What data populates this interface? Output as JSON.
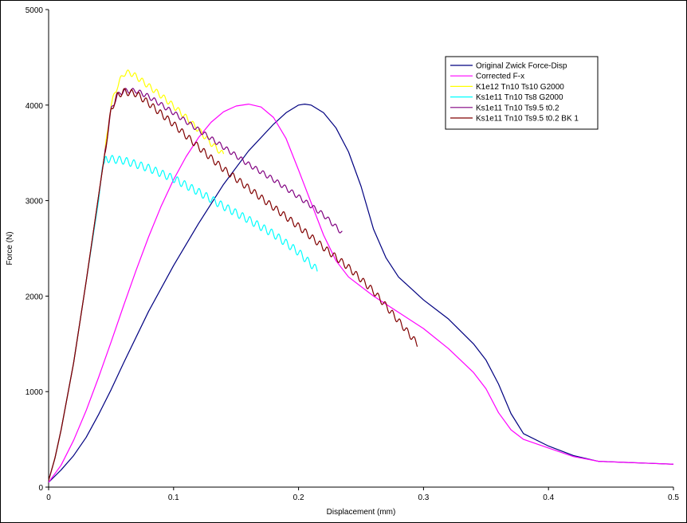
{
  "chart_data": {
    "type": "line",
    "title": "",
    "xlabel": "Displacement (mm)",
    "ylabel": "Force (N)",
    "xlim": [
      0,
      0.5
    ],
    "ylim": [
      0,
      5000
    ],
    "x_ticks": [
      "0",
      "0.1",
      "0.2",
      "0.3",
      "0.4",
      "0.5"
    ],
    "y_ticks": [
      "0",
      "1000",
      "2000",
      "3000",
      "4000",
      "5000"
    ],
    "grid": false,
    "legend_position": "top-right",
    "series": [
      {
        "name": "Original Zwick Force-Disp",
        "color": "#000080",
        "oscillation": 0,
        "points": [
          [
            0,
            50
          ],
          [
            0.01,
            180
          ],
          [
            0.02,
            330
          ],
          [
            0.03,
            520
          ],
          [
            0.04,
            760
          ],
          [
            0.05,
            1020
          ],
          [
            0.06,
            1300
          ],
          [
            0.08,
            1840
          ],
          [
            0.1,
            2320
          ],
          [
            0.12,
            2760
          ],
          [
            0.14,
            3170
          ],
          [
            0.16,
            3520
          ],
          [
            0.18,
            3800
          ],
          [
            0.19,
            3920
          ],
          [
            0.2,
            4000
          ],
          [
            0.205,
            4010
          ],
          [
            0.21,
            4000
          ],
          [
            0.22,
            3920
          ],
          [
            0.23,
            3760
          ],
          [
            0.24,
            3510
          ],
          [
            0.25,
            3150
          ],
          [
            0.26,
            2700
          ],
          [
            0.27,
            2400
          ],
          [
            0.28,
            2200
          ],
          [
            0.3,
            1960
          ],
          [
            0.32,
            1760
          ],
          [
            0.34,
            1500
          ],
          [
            0.35,
            1330
          ],
          [
            0.36,
            1080
          ],
          [
            0.37,
            770
          ],
          [
            0.38,
            560
          ],
          [
            0.4,
            430
          ],
          [
            0.42,
            330
          ],
          [
            0.44,
            270
          ],
          [
            0.46,
            260
          ],
          [
            0.48,
            250
          ],
          [
            0.5,
            240
          ]
        ]
      },
      {
        "name": "Corrected F-x",
        "color": "#FF00FF",
        "oscillation": 0,
        "points": [
          [
            0,
            50
          ],
          [
            0.01,
            230
          ],
          [
            0.02,
            490
          ],
          [
            0.03,
            800
          ],
          [
            0.04,
            1150
          ],
          [
            0.05,
            1520
          ],
          [
            0.06,
            1900
          ],
          [
            0.07,
            2270
          ],
          [
            0.08,
            2620
          ],
          [
            0.09,
            2940
          ],
          [
            0.1,
            3220
          ],
          [
            0.11,
            3460
          ],
          [
            0.12,
            3660
          ],
          [
            0.13,
            3820
          ],
          [
            0.14,
            3930
          ],
          [
            0.15,
            3990
          ],
          [
            0.16,
            4010
          ],
          [
            0.17,
            3980
          ],
          [
            0.18,
            3870
          ],
          [
            0.19,
            3650
          ],
          [
            0.2,
            3320
          ],
          [
            0.21,
            2980
          ],
          [
            0.22,
            2640
          ],
          [
            0.23,
            2370
          ],
          [
            0.24,
            2200
          ],
          [
            0.26,
            2000
          ],
          [
            0.28,
            1830
          ],
          [
            0.3,
            1660
          ],
          [
            0.32,
            1450
          ],
          [
            0.34,
            1200
          ],
          [
            0.35,
            1030
          ],
          [
            0.36,
            780
          ],
          [
            0.37,
            600
          ],
          [
            0.38,
            500
          ],
          [
            0.4,
            410
          ],
          [
            0.42,
            320
          ],
          [
            0.44,
            270
          ],
          [
            0.46,
            260
          ],
          [
            0.48,
            250
          ],
          [
            0.5,
            240
          ]
        ]
      },
      {
        "name": "K1e12 Tn10 Ts10 G2000",
        "color": "#FFFF00",
        "oscillation": 30,
        "points": [
          [
            0,
            70
          ],
          [
            0.005,
            300
          ],
          [
            0.01,
            600
          ],
          [
            0.02,
            1300
          ],
          [
            0.03,
            2150
          ],
          [
            0.04,
            3050
          ],
          [
            0.045,
            3500
          ],
          [
            0.05,
            4000
          ],
          [
            0.055,
            4200
          ],
          [
            0.06,
            4330
          ],
          [
            0.065,
            4340
          ],
          [
            0.07,
            4300
          ],
          [
            0.08,
            4200
          ],
          [
            0.09,
            4100
          ],
          [
            0.1,
            3990
          ],
          [
            0.11,
            3870
          ],
          [
            0.12,
            3740
          ],
          [
            0.13,
            3600
          ],
          [
            0.14,
            3480
          ]
        ]
      },
      {
        "name": "Ks1e11 Tn10 Ts8 G2000",
        "color": "#00FFFF",
        "oscillation": 40,
        "points": [
          [
            0,
            70
          ],
          [
            0.005,
            300
          ],
          [
            0.01,
            600
          ],
          [
            0.02,
            1300
          ],
          [
            0.03,
            2150
          ],
          [
            0.04,
            3000
          ],
          [
            0.043,
            3350
          ],
          [
            0.046,
            3440
          ],
          [
            0.06,
            3420
          ],
          [
            0.08,
            3340
          ],
          [
            0.1,
            3230
          ],
          [
            0.12,
            3090
          ],
          [
            0.14,
            2940
          ],
          [
            0.16,
            2800
          ],
          [
            0.18,
            2650
          ],
          [
            0.2,
            2460
          ],
          [
            0.215,
            2270
          ]
        ]
      },
      {
        "name": "Ks1e11 Tn10 Ts9.5 t0.2",
        "color": "#800080",
        "oscillation": 25,
        "points": [
          [
            0,
            70
          ],
          [
            0.005,
            300
          ],
          [
            0.01,
            600
          ],
          [
            0.02,
            1300
          ],
          [
            0.03,
            2150
          ],
          [
            0.04,
            3050
          ],
          [
            0.05,
            3950
          ],
          [
            0.055,
            4100
          ],
          [
            0.06,
            4150
          ],
          [
            0.07,
            4150
          ],
          [
            0.08,
            4090
          ],
          [
            0.1,
            3920
          ],
          [
            0.12,
            3740
          ],
          [
            0.14,
            3560
          ],
          [
            0.16,
            3380
          ],
          [
            0.18,
            3220
          ],
          [
            0.2,
            3040
          ],
          [
            0.22,
            2850
          ],
          [
            0.235,
            2660
          ]
        ]
      },
      {
        "name": "Ks1e11 Tn10 Ts9.5 t0.2 BK 1",
        "color": "#800000",
        "oscillation": 35,
        "points": [
          [
            0,
            70
          ],
          [
            0.005,
            300
          ],
          [
            0.01,
            600
          ],
          [
            0.02,
            1300
          ],
          [
            0.03,
            2150
          ],
          [
            0.04,
            3050
          ],
          [
            0.05,
            3950
          ],
          [
            0.055,
            4100
          ],
          [
            0.06,
            4140
          ],
          [
            0.07,
            4120
          ],
          [
            0.08,
            4020
          ],
          [
            0.1,
            3800
          ],
          [
            0.12,
            3560
          ],
          [
            0.14,
            3330
          ],
          [
            0.16,
            3130
          ],
          [
            0.18,
            2930
          ],
          [
            0.2,
            2730
          ],
          [
            0.22,
            2510
          ],
          [
            0.24,
            2300
          ],
          [
            0.26,
            2050
          ],
          [
            0.28,
            1740
          ],
          [
            0.295,
            1500
          ]
        ]
      }
    ]
  }
}
